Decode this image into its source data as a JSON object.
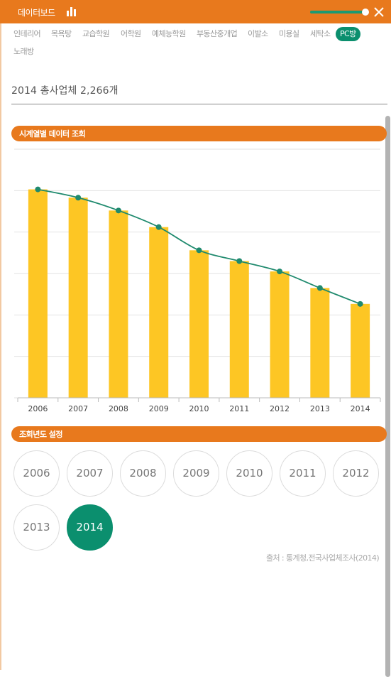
{
  "header": {
    "title": "데이터보드",
    "accent_color": "#e8791d",
    "slider_color": "#1c9a72",
    "icons": [
      "bar-chart-icon",
      "close-icon"
    ]
  },
  "tabs": [
    {
      "label": "인테리어",
      "active": false
    },
    {
      "label": "목욕탕",
      "active": false
    },
    {
      "label": "교습학원",
      "active": false
    },
    {
      "label": "어학원",
      "active": false
    },
    {
      "label": "예체능학원",
      "active": false
    },
    {
      "label": "부동산중개업",
      "active": false
    },
    {
      "label": "이발소",
      "active": false
    },
    {
      "label": "미용실",
      "active": false
    },
    {
      "label": "세탁소",
      "active": false
    },
    {
      "label": "PC방",
      "active": true
    },
    {
      "label": "노래방",
      "active": false
    }
  ],
  "summary": "2014 총사업체 2,266개",
  "timeseries_section": {
    "title": "시계열별 데이터 조회"
  },
  "chart_data": {
    "type": "bar",
    "categories": [
      "2006",
      "2007",
      "2008",
      "2009",
      "2010",
      "2011",
      "2012",
      "2013",
      "2014"
    ],
    "values": [
      5030,
      4830,
      4520,
      4120,
      3560,
      3300,
      3050,
      2650,
      2266
    ],
    "line_values": [
      5030,
      4830,
      4520,
      4120,
      3560,
      3300,
      3050,
      2650,
      2266
    ],
    "ylim": [
      0,
      6000
    ],
    "grid": true,
    "bar_color": "#fdc624",
    "line_color": "#1f8a6e",
    "xlabel": "",
    "ylabel": "",
    "title": ""
  },
  "year_section": {
    "title": "조회년도 설정",
    "years": [
      "2006",
      "2007",
      "2008",
      "2009",
      "2010",
      "2011",
      "2012",
      "2013",
      "2014"
    ],
    "selected": "2014"
  },
  "source": "출처 : 통계청,전국사업체조사(2014)"
}
